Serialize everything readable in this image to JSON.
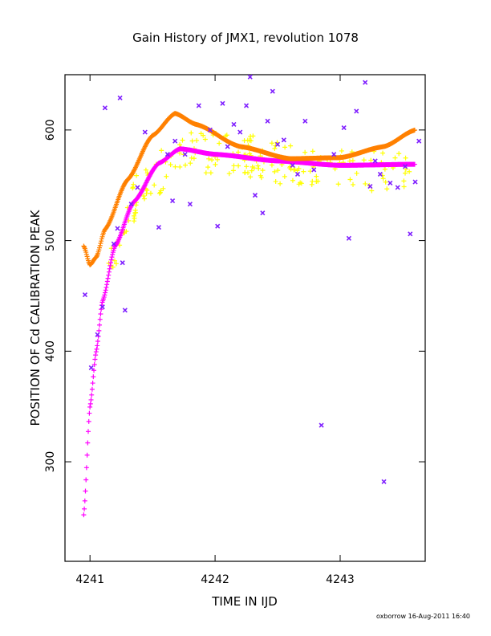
{
  "chart_data": {
    "type": "scatter",
    "title": "Gain History of JMX1, revolution 1078",
    "xlabel": "TIME IN IJD",
    "ylabel": "POSITION OF Cd CALIBRATION PEAK",
    "xlim": [
      4240.8,
      4243.68
    ],
    "ylim": [
      210,
      650
    ],
    "xticks": [
      4241,
      4242,
      4243
    ],
    "yticks": [
      300,
      400,
      500,
      600
    ],
    "xtick_labels": [
      "4241",
      "4242",
      "4243"
    ],
    "ytick_labels": [
      "300",
      "400",
      "500",
      "600"
    ],
    "grid": false,
    "legend": false,
    "footer": "oxborrow 16-Aug-2011 16:40",
    "series": [
      {
        "marker": "x",
        "color": "#7f1fff",
        "points": [
          [
            4240.96,
            451
          ],
          [
            4241.01,
            385
          ],
          [
            4241.06,
            415
          ],
          [
            4241.1,
            440
          ],
          [
            4241.12,
            620
          ],
          [
            4241.19,
            497
          ],
          [
            4241.22,
            511
          ],
          [
            4241.24,
            629
          ],
          [
            4241.26,
            480
          ],
          [
            4241.28,
            437
          ],
          [
            4241.33,
            533
          ],
          [
            4241.38,
            548
          ],
          [
            4241.44,
            598
          ],
          [
            4241.55,
            512
          ],
          [
            4241.62,
            578
          ],
          [
            4241.66,
            536
          ],
          [
            4241.68,
            590
          ],
          [
            4241.76,
            578
          ],
          [
            4241.8,
            533
          ],
          [
            4241.87,
            622
          ],
          [
            4241.96,
            600
          ],
          [
            4242.02,
            513
          ],
          [
            4242.06,
            624
          ],
          [
            4242.1,
            585
          ],
          [
            4242.15,
            605
          ],
          [
            4242.2,
            598
          ],
          [
            4242.25,
            622
          ],
          [
            4242.28,
            648
          ],
          [
            4242.32,
            541
          ],
          [
            4242.38,
            525
          ],
          [
            4242.42,
            608
          ],
          [
            4242.46,
            635
          ],
          [
            4242.5,
            587
          ],
          [
            4242.55,
            591
          ],
          [
            4242.62,
            568
          ],
          [
            4242.66,
            560
          ],
          [
            4242.72,
            608
          ],
          [
            4242.79,
            564
          ],
          [
            4242.85,
            333
          ],
          [
            4242.95,
            578
          ],
          [
            4243.03,
            602
          ],
          [
            4243.07,
            502
          ],
          [
            4243.13,
            617
          ],
          [
            4243.2,
            643
          ],
          [
            4243.24,
            549
          ],
          [
            4243.28,
            572
          ],
          [
            4243.32,
            560
          ],
          [
            4243.35,
            282
          ],
          [
            4243.4,
            552
          ],
          [
            4243.46,
            548
          ],
          [
            4243.52,
            567
          ],
          [
            4243.56,
            506
          ],
          [
            4243.6,
            553
          ],
          [
            4243.63,
            590
          ]
        ]
      }
    ]
  }
}
